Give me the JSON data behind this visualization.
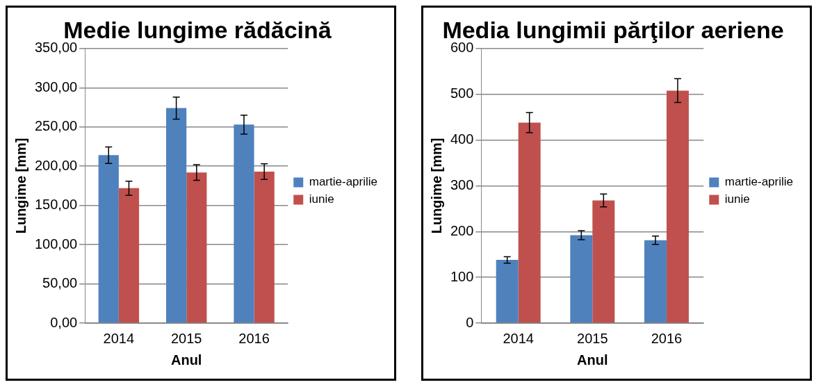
{
  "chart_data": [
    {
      "type": "bar",
      "title": "Medie lungime rădăcină",
      "xlabel": "Anul",
      "ylabel": "Lungime [mm]",
      "categories": [
        "2014",
        "2015",
        "2016"
      ],
      "series": [
        {
          "name": "martie-aprilie",
          "color": "#4f81bd",
          "values": [
            214,
            274,
            253
          ],
          "errors": [
            10.5,
            14,
            12
          ]
        },
        {
          "name": "iunie",
          "color": "#c0504d",
          "values": [
            172,
            192,
            193
          ],
          "errors": [
            9,
            10,
            10
          ]
        }
      ],
      "ylim": [
        0,
        350
      ],
      "yticks": [
        {
          "value": 0,
          "label": "0,00"
        },
        {
          "value": 50,
          "label": "50,00"
        },
        {
          "value": 100,
          "label": "100,00"
        },
        {
          "value": 150,
          "label": "150,00"
        },
        {
          "value": 200,
          "label": "200,00"
        },
        {
          "value": 250,
          "label": "250,00"
        },
        {
          "value": 300,
          "label": "300,00"
        },
        {
          "value": 350,
          "label": "350,00"
        }
      ],
      "grid": "y",
      "legend": "right"
    },
    {
      "type": "bar",
      "title": "Media lungimii părţilor aeriene",
      "xlabel": "Anul",
      "ylabel": "Lungime [mm]",
      "categories": [
        "2014",
        "2015",
        "2016"
      ],
      "series": [
        {
          "name": "martie-aprilie",
          "color": "#4f81bd",
          "values": [
            138,
            192,
            181
          ],
          "errors": [
            7,
            10,
            9
          ]
        },
        {
          "name": "iunie",
          "color": "#c0504d",
          "values": [
            438,
            268,
            508
          ],
          "errors": [
            22,
            14,
            26
          ]
        }
      ],
      "ylim": [
        0,
        600
      ],
      "yticks": [
        0,
        100,
        200,
        300,
        400,
        500,
        600
      ],
      "grid": "y",
      "legend": "right"
    }
  ]
}
